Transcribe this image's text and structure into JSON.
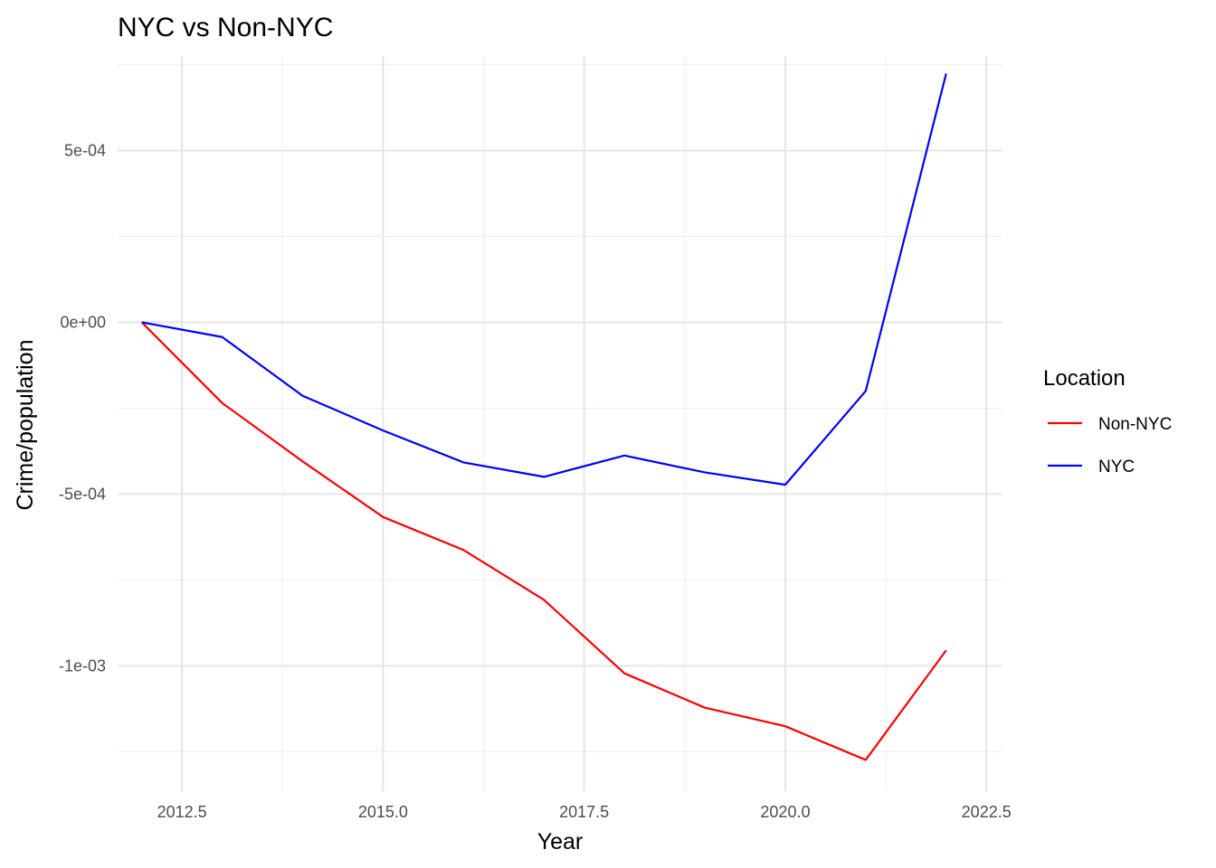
{
  "chart_data": {
    "type": "line",
    "title": "NYC vs Non-NYC",
    "xlabel": "Year",
    "ylabel": "Crime/population",
    "x": [
      2012,
      2013,
      2014,
      2015,
      2016,
      2017,
      2018,
      2019,
      2020,
      2021,
      2022
    ],
    "xlim": [
      2011.7,
      2022.7
    ],
    "ylim": [
      -0.001365,
      0.000775
    ],
    "x_ticks": [
      2012.5,
      2015.0,
      2017.5,
      2020.0,
      2022.5
    ],
    "x_tick_labels": [
      "2012.5",
      "2015.0",
      "2017.5",
      "2020.0",
      "2022.5"
    ],
    "y_ticks": [
      0.0005,
      0.0,
      -0.0005,
      -0.001
    ],
    "y_tick_labels": [
      "5e-04",
      "0e+00",
      "-5e-04",
      "-1e-03"
    ],
    "grid": true,
    "legend": {
      "title": "Location",
      "placement": "right"
    },
    "series": [
      {
        "name": "Non-NYC",
        "color": "#ff0000",
        "values": [
          0.0,
          -0.000235,
          -0.000405,
          -0.000567,
          -0.000663,
          -0.000808,
          -0.001022,
          -0.001122,
          -0.001176,
          -0.001274,
          -0.000955
        ]
      },
      {
        "name": "NYC",
        "color": "#0000ff",
        "values": [
          0.0,
          -4.3e-05,
          -0.000214,
          -0.000315,
          -0.000408,
          -0.00045,
          -0.000388,
          -0.000437,
          -0.000473,
          -0.0002,
          0.000724
        ]
      }
    ]
  }
}
